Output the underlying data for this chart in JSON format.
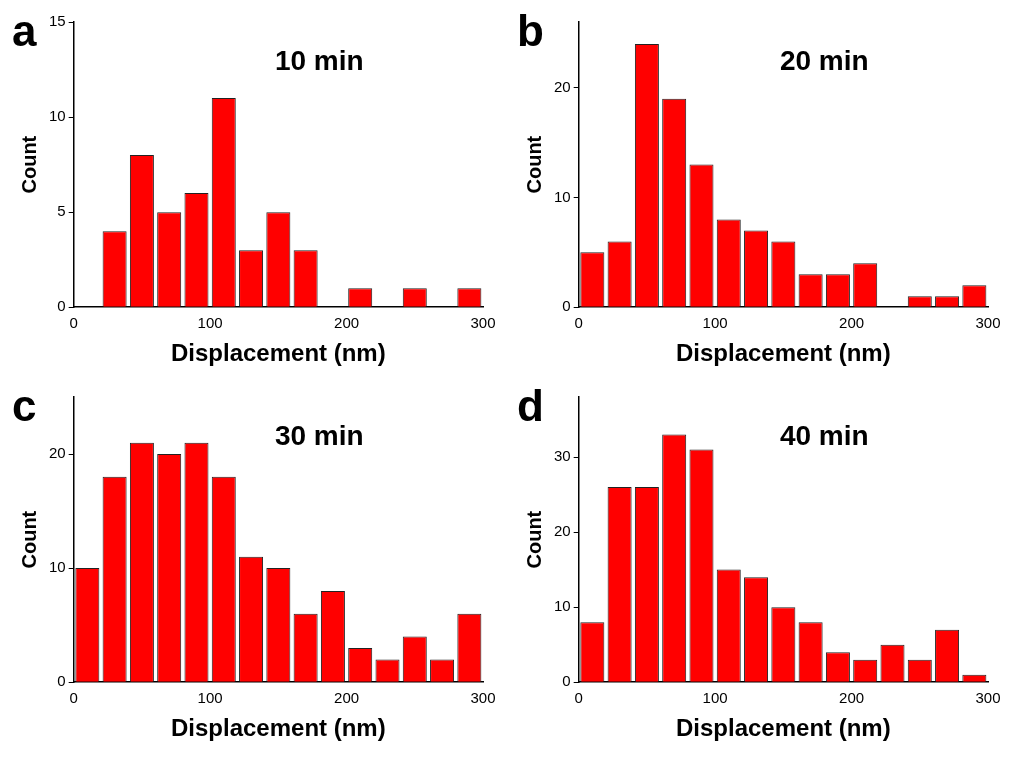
{
  "chart_data": [
    {
      "type": "histogram",
      "title": "a",
      "annotations": [
        "10 min"
      ],
      "xlabel": "Displacement (nm)",
      "ylabel": "Count",
      "bins": [
        0,
        20,
        40,
        60,
        80,
        100,
        120,
        140,
        160,
        180,
        200,
        220,
        240,
        260,
        280,
        300
      ],
      "values": [
        0,
        4,
        8,
        5,
        6,
        11,
        3,
        5,
        3,
        0,
        1,
        0,
        1,
        0,
        1
      ],
      "color": "#ff0000",
      "xlim": [
        0,
        300
      ],
      "xticks": [
        0,
        100,
        200,
        300
      ],
      "ylim": [
        0,
        15
      ],
      "yticks": [
        0,
        5,
        10,
        15
      ],
      "grid": false,
      "legend": false
    },
    {
      "type": "histogram",
      "title": "b",
      "annotations": [
        "20 min"
      ],
      "xlabel": "Displacement (nm)",
      "ylabel": "Count",
      "bins": [
        0,
        20,
        40,
        60,
        80,
        100,
        120,
        140,
        160,
        180,
        200,
        220,
        240,
        260,
        280,
        300
      ],
      "values": [
        5,
        6,
        24,
        19,
        13,
        8,
        7,
        6,
        3,
        3,
        4,
        0,
        1,
        1,
        2
      ],
      "color": "#ff0000",
      "xlim": [
        0,
        300
      ],
      "xticks": [
        0,
        100,
        200,
        300
      ],
      "ylim": [
        0,
        26
      ],
      "yticks": [
        0,
        10,
        20
      ],
      "grid": false,
      "legend": false
    },
    {
      "type": "histogram",
      "title": "c",
      "annotations": [
        "30 min"
      ],
      "xlabel": "Displacement (nm)",
      "ylabel": "Count",
      "bins": [
        0,
        20,
        40,
        60,
        80,
        100,
        120,
        140,
        160,
        180,
        200,
        220,
        240,
        260,
        280,
        300
      ],
      "values": [
        10,
        18,
        21,
        20,
        21,
        18,
        11,
        10,
        6,
        8,
        3,
        2,
        4,
        2,
        6
      ],
      "color": "#ff0000",
      "xlim": [
        0,
        300
      ],
      "xticks": [
        0,
        100,
        200,
        300
      ],
      "ylim": [
        0,
        25
      ],
      "yticks": [
        0,
        10,
        20
      ],
      "grid": false,
      "legend": false
    },
    {
      "type": "histogram",
      "title": "d",
      "annotations": [
        "40 min"
      ],
      "xlabel": "Displacement (nm)",
      "ylabel": "Count",
      "bins": [
        0,
        20,
        40,
        60,
        80,
        100,
        120,
        140,
        160,
        180,
        200,
        220,
        240,
        260,
        280,
        300
      ],
      "values": [
        8,
        26,
        26,
        33,
        31,
        15,
        14,
        10,
        8,
        4,
        3,
        5,
        3,
        7,
        1
      ],
      "color": "#ff0000",
      "xlim": [
        0,
        300
      ],
      "xticks": [
        0,
        100,
        200,
        300
      ],
      "ylim": [
        0,
        38
      ],
      "yticks": [
        0,
        10,
        20,
        30
      ],
      "grid": false,
      "legend": false
    }
  ]
}
